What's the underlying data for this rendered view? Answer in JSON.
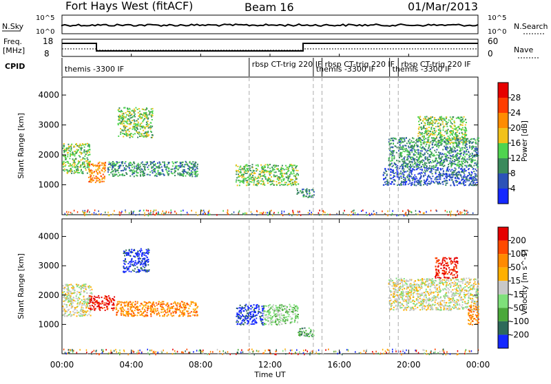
{
  "header": {
    "title": "Fort Hays West (fitACF)",
    "beam": "Beam 16",
    "date": "01/Mar/2013"
  },
  "noise_panel": {
    "left_label": "N.Sky",
    "left_ticks": [
      "10^5",
      "10^0"
    ],
    "right_ticks": [
      "10^5",
      "10^0"
    ],
    "right_label": "N.Search"
  },
  "freq_panel": {
    "left_label_line1": "Freq.",
    "left_label_line2": "[MHz]",
    "left_ticks": [
      "18",
      "8"
    ],
    "right_ticks": [
      "60",
      "0"
    ],
    "right_label": "Nave"
  },
  "cpid": {
    "label": "CPID",
    "entries": [
      {
        "text": "themis -3300 IF",
        "hour": 0.0
      },
      {
        "text": "rbsp CT-trig 220 IF",
        "hour": 10.8
      },
      {
        "text": "themis -3300 IF",
        "hour": 14.5
      },
      {
        "text": "rbsp CT-trig 220 IF",
        "hour": 15.0
      },
      {
        "text": "themis -3300 IF",
        "hour": 18.9
      },
      {
        "text": "rbsp CT-trig 220 IF",
        "hour": 19.4
      }
    ]
  },
  "chart_data": [
    {
      "type": "heatmap",
      "panel": "power",
      "ylabel": "Slant Range [km]",
      "ylim": [
        0,
        4600
      ],
      "y_ticks": [
        "1000",
        "2000",
        "3000",
        "4000"
      ],
      "colorbar_label": "Power [dB]",
      "colorbar_ticks": [
        "28",
        "24",
        "20",
        "16",
        "12",
        "8",
        "4"
      ],
      "colors": [
        "#1428ff",
        "#2c52b8",
        "#3a8a5c",
        "#4fd44f",
        "#f2c21a",
        "#ff8c00",
        "#ff3d00",
        "#e60000"
      ],
      "regions": [
        {
          "t0": 0.0,
          "t1": 1.6,
          "r0": 1400,
          "r1": 2400,
          "level": 3
        },
        {
          "t0": 1.5,
          "t1": 2.5,
          "r0": 1100,
          "r1": 1800,
          "level": 5
        },
        {
          "t0": 3.2,
          "t1": 5.2,
          "r0": 2600,
          "r1": 3600,
          "level": 3
        },
        {
          "t0": 2.6,
          "t1": 7.8,
          "r0": 1300,
          "r1": 1800,
          "level": 2
        },
        {
          "t0": 10.0,
          "t1": 13.6,
          "r0": 1000,
          "r1": 1700,
          "level": 3
        },
        {
          "t0": 13.5,
          "t1": 14.5,
          "r0": 600,
          "r1": 900,
          "level": 2
        },
        {
          "t0": 18.8,
          "t1": 24.0,
          "r0": 1600,
          "r1": 2600,
          "level": 2
        },
        {
          "t0": 20.5,
          "t1": 23.3,
          "r0": 2400,
          "r1": 3300,
          "level": 3
        },
        {
          "t0": 18.5,
          "t1": 23.9,
          "r0": 1000,
          "r1": 1600,
          "level": 1
        }
      ]
    },
    {
      "type": "heatmap",
      "panel": "velocity",
      "ylabel": "Slant Range [km]",
      "ylim": [
        0,
        4600
      ],
      "y_ticks": [
        "1000",
        "2000",
        "3000",
        "4000"
      ],
      "colorbar_label": "Velocity [m s^-1]",
      "colorbar_ticks": [
        "200",
        "100",
        "50",
        "15",
        "-15",
        "-50",
        "-100",
        "-200"
      ],
      "colors": [
        "#1428ff",
        "#2e6a5a",
        "#4aa83a",
        "#7fe07a",
        "#c8c8c8",
        "#ffb000",
        "#ff8a00",
        "#ff4a00",
        "#e60000"
      ],
      "regions": [
        {
          "t0": 0.0,
          "t1": 1.7,
          "r0": 1300,
          "r1": 2400,
          "level": 4
        },
        {
          "t0": 1.5,
          "t1": 3.0,
          "r0": 1500,
          "r1": 2000,
          "level": 8
        },
        {
          "t0": 3.5,
          "t1": 5.0,
          "r0": 2800,
          "r1": 3600,
          "level": 0
        },
        {
          "t0": 3.0,
          "t1": 7.8,
          "r0": 1300,
          "r1": 1800,
          "level": 6
        },
        {
          "t0": 10.0,
          "t1": 11.6,
          "r0": 1000,
          "r1": 1700,
          "level": 0
        },
        {
          "t0": 11.6,
          "t1": 13.6,
          "r0": 1000,
          "r1": 1700,
          "level": 3
        },
        {
          "t0": 13.6,
          "t1": 14.5,
          "r0": 600,
          "r1": 900,
          "level": 2
        },
        {
          "t0": 18.8,
          "t1": 24.0,
          "r0": 1500,
          "r1": 2600,
          "level": 4
        },
        {
          "t0": 21.5,
          "t1": 22.8,
          "r0": 2600,
          "r1": 3300,
          "level": 8
        },
        {
          "t0": 23.4,
          "t1": 24.0,
          "r0": 1000,
          "r1": 1700,
          "level": 6
        }
      ]
    }
  ],
  "x_axis": {
    "label": "Time UT",
    "ticks": [
      "00:00",
      "04:00",
      "08:00",
      "12:00",
      "16:00",
      "20:00",
      "00:00"
    ]
  },
  "dashed_lines_hours": [
    10.8,
    14.5,
    15.0,
    18.9,
    19.4
  ]
}
